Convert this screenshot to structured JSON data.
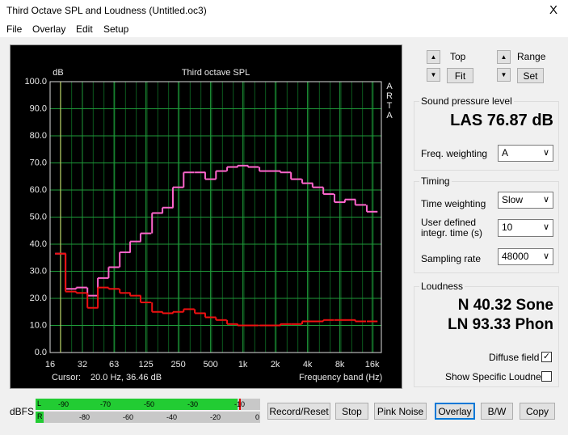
{
  "window": {
    "title": "Third Octave SPL and Loudness (Untitled.oc3)",
    "close": "X"
  },
  "menu": [
    "File",
    "Overlay",
    "Edit",
    "Setup"
  ],
  "chart_data": {
    "type": "step",
    "title": "Third octave SPL",
    "y_unit": "dB",
    "brand": [
      "A",
      "R",
      "T",
      "A"
    ],
    "xlabel": "Frequency band (Hz)",
    "cursor_label": "Cursor:",
    "cursor_text": "20.0 Hz, 36.46 dB",
    "cursor_x": 20,
    "log_x": true,
    "grid": true,
    "x": [
      20,
      25,
      31.5,
      40,
      50,
      63,
      80,
      100,
      125,
      160,
      200,
      250,
      315,
      400,
      500,
      630,
      800,
      1000,
      1250,
      1600,
      2000,
      2500,
      3150,
      4000,
      5000,
      6300,
      8000,
      10000,
      12500,
      16000
    ],
    "series": [
      {
        "color": "#ff66cc",
        "values": [
          36.5,
          23.5,
          24,
          21,
          27.5,
          31.5,
          37,
          41,
          44,
          51.5,
          53.5,
          61,
          66.5,
          66.5,
          64,
          67,
          68.5,
          69,
          68.5,
          67,
          67,
          66.5,
          64,
          62.5,
          61,
          58.5,
          55.5,
          56.5,
          54.5,
          52
        ]
      },
      {
        "color": "#ee1111",
        "values": [
          36.5,
          22.5,
          22,
          16.5,
          24,
          23.5,
          22,
          21,
          18.5,
          15,
          14.5,
          15,
          16,
          14.5,
          13,
          12,
          10.5,
          10,
          10,
          10,
          10,
          10.5,
          10.5,
          11.5,
          11.5,
          12,
          12,
          12,
          11.5,
          11.5
        ]
      }
    ],
    "xlim": [
      16,
      19484
    ],
    "xticks": [
      16,
      32,
      63,
      125,
      250,
      500,
      {
        "value": 1000,
        "label": "1k"
      },
      {
        "value": 2000,
        "label": "2k"
      },
      {
        "value": 4000,
        "label": "4k"
      },
      {
        "value": 8000,
        "label": "8k"
      },
      {
        "value": 16000,
        "label": "16k"
      }
    ],
    "ylim": [
      0,
      100
    ],
    "yticks": [
      {
        "value": 0,
        "label": "0.0"
      },
      {
        "value": 10,
        "label": "10.0"
      },
      {
        "value": 20,
        "label": "20.0"
      },
      {
        "value": 30,
        "label": "30.0"
      },
      {
        "value": 40,
        "label": "40.0"
      },
      {
        "value": 50,
        "label": "50.0"
      },
      {
        "value": 60,
        "label": "60.0"
      },
      {
        "value": 70,
        "label": "70.0"
      },
      {
        "value": 80,
        "label": "80.0"
      },
      {
        "value": 90,
        "label": "90.0"
      },
      {
        "value": 100,
        "label": "100.0"
      }
    ]
  },
  "meter": {
    "label": "dBFS",
    "left": "L",
    "right": "R",
    "left_marks": [
      "-90",
      "-70",
      "-50",
      "-30",
      "-10"
    ],
    "right_marks": [
      "-80",
      "-60",
      "-40",
      "-20",
      "0"
    ]
  },
  "buttons": [
    "Record/Reset",
    "Stop",
    "Pink Noise",
    "Overlay",
    "B/W",
    "Copy"
  ],
  "scale": {
    "top": "Top",
    "fit": "Fit",
    "range": "Range",
    "set": "Set"
  },
  "spl": {
    "title": "Sound pressure level",
    "reading": "LAS 76.87 dB",
    "weighting_label": "Freq. weighting",
    "weighting": "A"
  },
  "timing": {
    "title": "Timing",
    "time_weighting_label": "Time weighting",
    "time_weighting": "Slow",
    "integr_label": [
      "User defined",
      "integr. time (s)"
    ],
    "integr_time": "10",
    "sampling_label": "Sampling rate",
    "sampling": "48000"
  },
  "loudness": {
    "title": "Loudness",
    "sone": "N 40.32 Sone",
    "phon": "LN 93.33 Phon",
    "diffuse": "Diffuse field",
    "specific": "Show Specific Loudness"
  }
}
